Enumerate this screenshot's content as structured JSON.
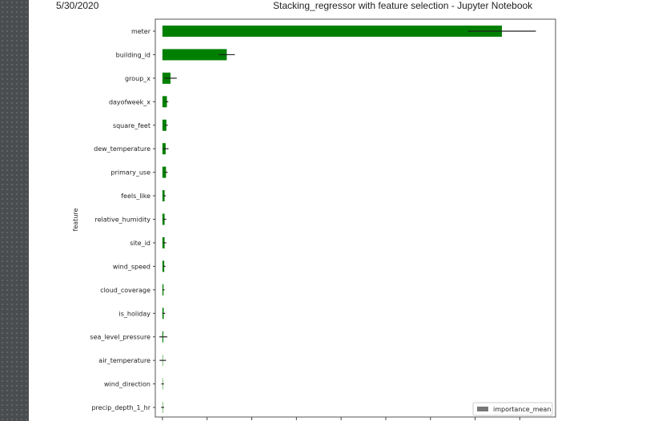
{
  "header": {
    "date": "5/30/2020",
    "title": "Stacking_regressor with feature selection - Jupyter Notebook"
  },
  "chart_data": {
    "type": "bar",
    "orientation": "horizontal",
    "ylabel": "feature",
    "xlabel": "",
    "bar_color": "#008000",
    "error_color": "#222222",
    "grid": false,
    "legend_placement": "bottom-right",
    "xlim": [
      -0.004,
      0.22
    ],
    "categories": [
      "meter",
      "building_id",
      "group_x",
      "dayofweek_x",
      "square_feet",
      "dew_temperature",
      "primary_use",
      "feels_like",
      "relative_humidity",
      "site_id",
      "wind_speed",
      "cloud_coverage",
      "is_holiday",
      "sea_level_pressure",
      "air_temperature",
      "wind_direction",
      "precip_depth_1_hr"
    ],
    "series": [
      {
        "name": "importance_mean",
        "values": [
          0.19,
          0.036,
          0.0045,
          0.0025,
          0.0022,
          0.0018,
          0.002,
          0.0012,
          0.0012,
          0.0012,
          0.001,
          0.0006,
          0.0007,
          0.0005,
          0.0002,
          0.0001,
          0.0001
        ],
        "errors": [
          0.019,
          0.0045,
          0.0035,
          0.0008,
          0.0008,
          0.0016,
          0.0009,
          0.0007,
          0.0009,
          0.0009,
          0.0007,
          0.0006,
          0.0008,
          0.0022,
          0.0018,
          0.0007,
          0.0008
        ]
      }
    ]
  }
}
